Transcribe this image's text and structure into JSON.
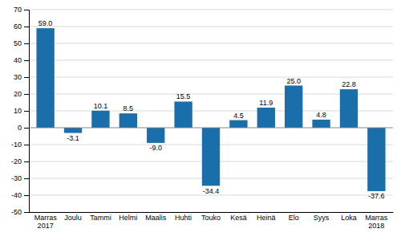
{
  "chart_data": {
    "type": "bar",
    "categories": [
      "Marras\n2017",
      "Joulu",
      "Tammi",
      "Helmi",
      "Maalis",
      "Huhti",
      "Touko",
      "Kesä",
      "Heinä",
      "Elo",
      "Syys",
      "Loka",
      "Marras\n2018"
    ],
    "values": [
      59.0,
      -3.1,
      10.1,
      8.5,
      -9.0,
      15.5,
      -34.4,
      4.5,
      11.9,
      25.0,
      4.8,
      22.8,
      -37.6
    ],
    "value_labels": [
      "59.0",
      "-3.1",
      "10.1",
      "8.5",
      "-9.0",
      "15.5",
      "-34.4",
      "4.5",
      "11.9",
      "25.0",
      "4.8",
      "22.8",
      "-37.6"
    ],
    "data_labels": true,
    "color": "#1a6faa",
    "ylim": [
      -50,
      70
    ],
    "yticks": [
      -50,
      -40,
      -30,
      -20,
      -10,
      0,
      10,
      20,
      30,
      40,
      50,
      60,
      70
    ],
    "grid": true
  }
}
